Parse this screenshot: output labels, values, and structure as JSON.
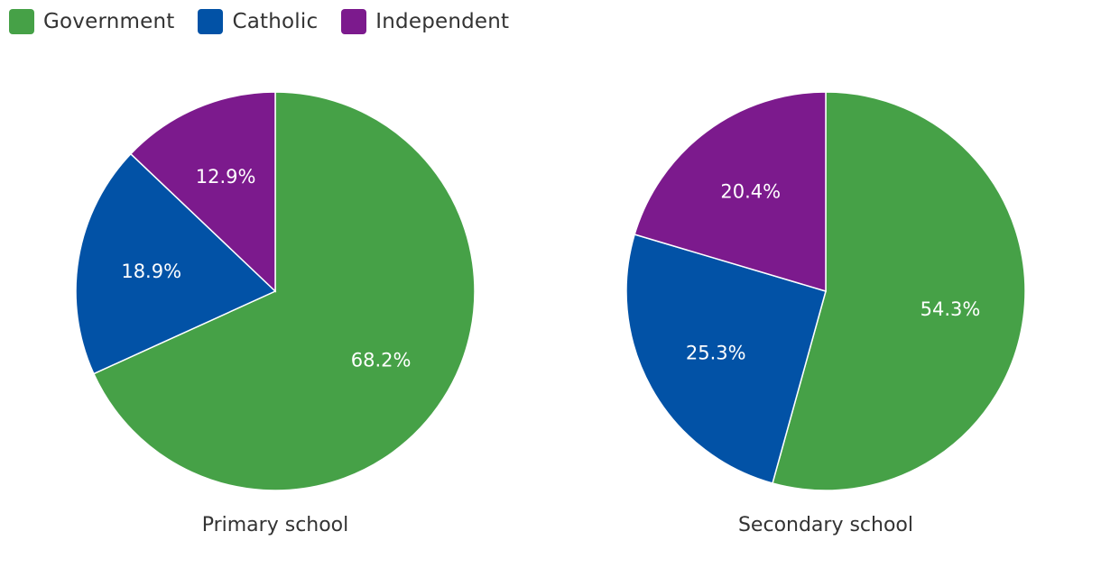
{
  "chart_data": [
    {
      "type": "pie",
      "title": "Primary school",
      "categories": [
        "Government",
        "Catholic",
        "Independent"
      ],
      "values": [
        68.2,
        18.9,
        12.9
      ],
      "labels": [
        "68.2%",
        "18.9%",
        "12.9%"
      ],
      "colors": [
        "#46a147",
        "#0252a6",
        "#7c1a8d"
      ]
    },
    {
      "type": "pie",
      "title": "Secondary school",
      "categories": [
        "Government",
        "Catholic",
        "Independent"
      ],
      "values": [
        54.3,
        25.3,
        20.4
      ],
      "labels": [
        "54.3%",
        "25.3%",
        "20.4%"
      ],
      "colors": [
        "#46a147",
        "#0252a6",
        "#7c1a8d"
      ]
    }
  ],
  "legend": {
    "items": [
      {
        "label": "Government",
        "color": "#46a147"
      },
      {
        "label": "Catholic",
        "color": "#0252a6"
      },
      {
        "label": "Independent",
        "color": "#7c1a8d"
      }
    ]
  }
}
